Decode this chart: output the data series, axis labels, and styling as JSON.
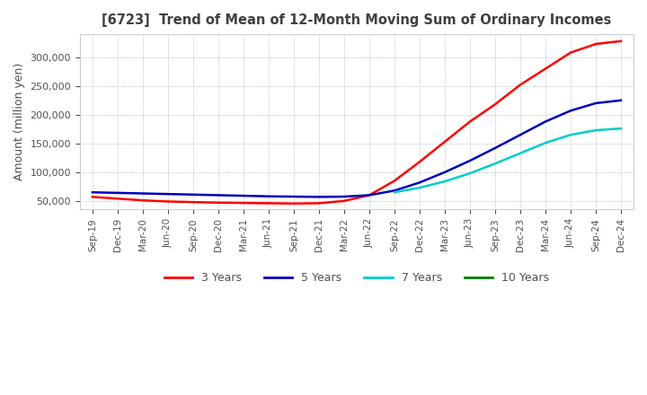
{
  "title": "[6723]  Trend of Mean of 12-Month Moving Sum of Ordinary Incomes",
  "ylabel": "Amount (million yen)",
  "background_color": "#ffffff",
  "grid_color": "#aaaaaa",
  "title_color": "#404040",
  "label_color": "#505050",
  "ylim": [
    35000,
    340000
  ],
  "yticks": [
    50000,
    100000,
    150000,
    200000,
    250000,
    300000
  ],
  "x_labels": [
    "Sep-19",
    "Dec-19",
    "Mar-20",
    "Jun-20",
    "Sep-20",
    "Dec-20",
    "Mar-21",
    "Jun-21",
    "Sep-21",
    "Dec-21",
    "Mar-22",
    "Jun-22",
    "Sep-22",
    "Dec-22",
    "Mar-23",
    "Jun-23",
    "Sep-23",
    "Dec-23",
    "Mar-24",
    "Jun-24",
    "Sep-24",
    "Dec-24"
  ],
  "lines": {
    "3 Years": {
      "color": "#ff0000",
      "data": [
        57000,
        54000,
        51000,
        49000,
        48000,
        47000,
        46500,
        46000,
        45500,
        46000,
        50000,
        60000,
        85000,
        118000,
        153000,
        188000,
        218000,
        252000,
        280000,
        308000,
        323000,
        328000
      ]
    },
    "5 Years": {
      "color": "#0000bb",
      "data": [
        65000,
        64000,
        63000,
        62000,
        61000,
        60000,
        59000,
        58000,
        57500,
        57000,
        57500,
        60000,
        68000,
        82000,
        100000,
        120000,
        142000,
        165000,
        188000,
        207000,
        220000,
        225000
      ]
    },
    "7 Years": {
      "color": "#00cccc",
      "data": [
        null,
        null,
        null,
        null,
        null,
        null,
        null,
        null,
        null,
        null,
        null,
        null,
        65000,
        73000,
        84000,
        98000,
        115000,
        133000,
        151000,
        165000,
        173000,
        176000
      ]
    },
    "10 Years": {
      "color": "#008000",
      "data": [
        null,
        null,
        null,
        null,
        null,
        null,
        null,
        null,
        null,
        null,
        null,
        null,
        null,
        null,
        null,
        null,
        null,
        null,
        null,
        null,
        null,
        null
      ]
    }
  },
  "legend_labels": [
    "3 Years",
    "5 Years",
    "7 Years",
    "10 Years"
  ],
  "legend_colors": [
    "#ff0000",
    "#0000bb",
    "#00cccc",
    "#008000"
  ]
}
